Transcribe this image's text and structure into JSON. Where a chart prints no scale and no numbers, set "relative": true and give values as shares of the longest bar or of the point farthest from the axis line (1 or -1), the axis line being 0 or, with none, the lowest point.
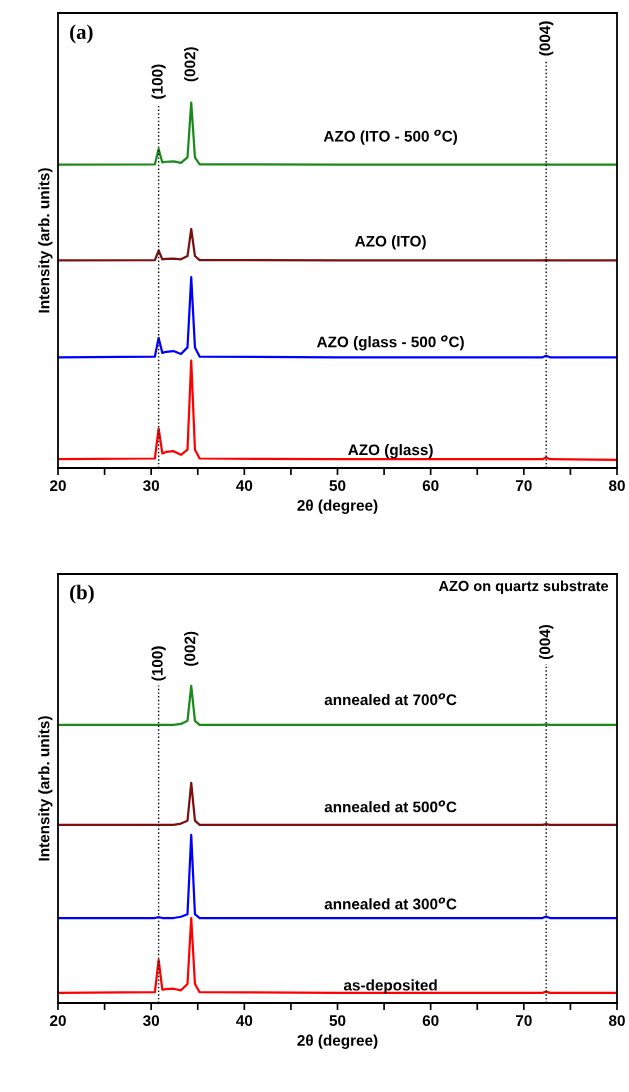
{
  "chart_data": [
    {
      "type": "line",
      "title": "(a)",
      "xlabel": "2θ (degree)",
      "ylabel": "Intensity (arb. units)",
      "relative": true,
      "x": [
        20,
        30.4,
        30.8,
        31.2,
        31.6,
        32.4,
        33.2,
        33.9,
        34.3,
        34.7,
        35.2,
        50,
        72.0,
        72.4,
        72.8,
        80
      ],
      "xlim": [
        20,
        80
      ],
      "xticks": [
        20,
        {
          "value": 25,
          "label": null
        },
        30,
        {
          "value": 35,
          "label": null
        },
        40,
        {
          "value": 45,
          "label": null
        },
        50,
        {
          "value": 55,
          "label": null
        },
        60,
        {
          "value": 65,
          "label": null
        },
        70,
        {
          "value": 75,
          "label": null
        },
        80
      ],
      "tick_labels": "x",
      "grid": false,
      "legend": false,
      "marker": "none",
      "line_style": "solid",
      "series": [
        {
          "name": "AZO (glass)",
          "color": "#ff0000",
          "values": [
            0.024,
            0.026,
            0.108,
            0.04,
            0.044,
            0.046,
            0.036,
            0.05,
            0.294,
            0.05,
            0.026,
            0.024,
            0.024,
            0.029,
            0.024,
            0.022
          ]
        },
        {
          "name": "AZO (glass - 500 $^{o}$C)",
          "color": "#0000ff",
          "values": [
            0.303,
            0.305,
            0.356,
            0.315,
            0.318,
            0.32,
            0.312,
            0.33,
            0.522,
            0.33,
            0.305,
            0.303,
            0.303,
            0.307,
            0.303,
            0.303
          ]
        },
        {
          "name": "AZO (ITO)",
          "color": "#7a1010",
          "values": [
            0.568,
            0.569,
            0.595,
            0.571,
            0.572,
            0.573,
            0.571,
            0.58,
            0.654,
            0.58,
            0.569,
            0.568,
            0.568,
            0.569,
            0.568,
            0.568
          ]
        },
        {
          "name": "AZO (ITO - 500 $^{o}$C)",
          "color": "#1a8a1a",
          "values": [
            0.83,
            0.831,
            0.873,
            0.836,
            0.838,
            0.839,
            0.835,
            0.85,
            1.0,
            0.85,
            0.831,
            0.83,
            0.83,
            0.831,
            0.83,
            0.83
          ]
        }
      ],
      "ref_lines": [
        {
          "axis": "x",
          "value": 30.8,
          "line_style": "dotted",
          "color": "#000000"
        },
        {
          "axis": "x",
          "value": 72.4,
          "line_style": "dotted",
          "color": "#000000"
        }
      ],
      "annotations": [
        "(100)",
        {
          "text": "(002)",
          "x": 34.3,
          "y": 1.0
        },
        "(004)"
      ]
    },
    {
      "type": "line",
      "title": "(b)",
      "subtitle": "AZO on quartz substrate",
      "xlabel": "2θ (degree)",
      "ylabel": "Intensity (arb. units)",
      "relative": true,
      "x": [
        20,
        30.4,
        30.8,
        31.2,
        31.6,
        32.4,
        33.2,
        33.9,
        34.3,
        34.7,
        35.2,
        50,
        72.0,
        72.4,
        72.8,
        80
      ],
      "xlim": [
        20,
        80
      ],
      "xticks": [
        20,
        {
          "value": 25,
          "label": null
        },
        30,
        {
          "value": 35,
          "label": null
        },
        40,
        {
          "value": 45,
          "label": null
        },
        50,
        {
          "value": 55,
          "label": null
        },
        60,
        {
          "value": 65,
          "label": null
        },
        70,
        {
          "value": 75,
          "label": null
        },
        80
      ],
      "tick_labels": "x",
      "grid": false,
      "legend": false,
      "marker": "none",
      "line_style": "solid",
      "series": [
        {
          "name": "as-deposited",
          "color": "#ff0000",
          "values": [
            0.032,
            0.034,
            0.136,
            0.042,
            0.044,
            0.045,
            0.04,
            0.06,
            0.268,
            0.06,
            0.034,
            0.032,
            0.032,
            0.036,
            0.032,
            0.032
          ]
        },
        {
          "name": "annealed at 300$^{o}$C",
          "color": "#0000ff",
          "values": [
            0.268,
            0.268,
            0.271,
            0.268,
            0.268,
            0.268,
            0.272,
            0.28,
            0.53,
            0.28,
            0.268,
            0.268,
            0.268,
            0.273,
            0.268,
            0.268
          ]
        },
        {
          "name": "annealed at 500$^{o}$C",
          "color": "#7a1010",
          "values": [
            0.562,
            0.562,
            0.562,
            0.562,
            0.562,
            0.562,
            0.566,
            0.575,
            0.694,
            0.575,
            0.562,
            0.562,
            0.562,
            0.564,
            0.562,
            0.562
          ]
        },
        {
          "name": "annealed at 700$^{o}$C",
          "color": "#1a8a1a",
          "values": [
            0.877,
            0.877,
            0.877,
            0.877,
            0.877,
            0.877,
            0.88,
            0.89,
            1.0,
            0.89,
            0.877,
            0.877,
            0.877,
            0.879,
            0.877,
            0.877
          ]
        }
      ],
      "ref_lines": [
        {
          "axis": "x",
          "value": 30.8,
          "line_style": "dotted",
          "color": "#000000"
        },
        {
          "axis": "x",
          "value": 72.4,
          "line_style": "dotted",
          "color": "#000000"
        }
      ],
      "annotations": [
        "(100)",
        {
          "text": "(002)",
          "x": 34.3,
          "y": 1.0
        },
        "(004)"
      ]
    }
  ]
}
